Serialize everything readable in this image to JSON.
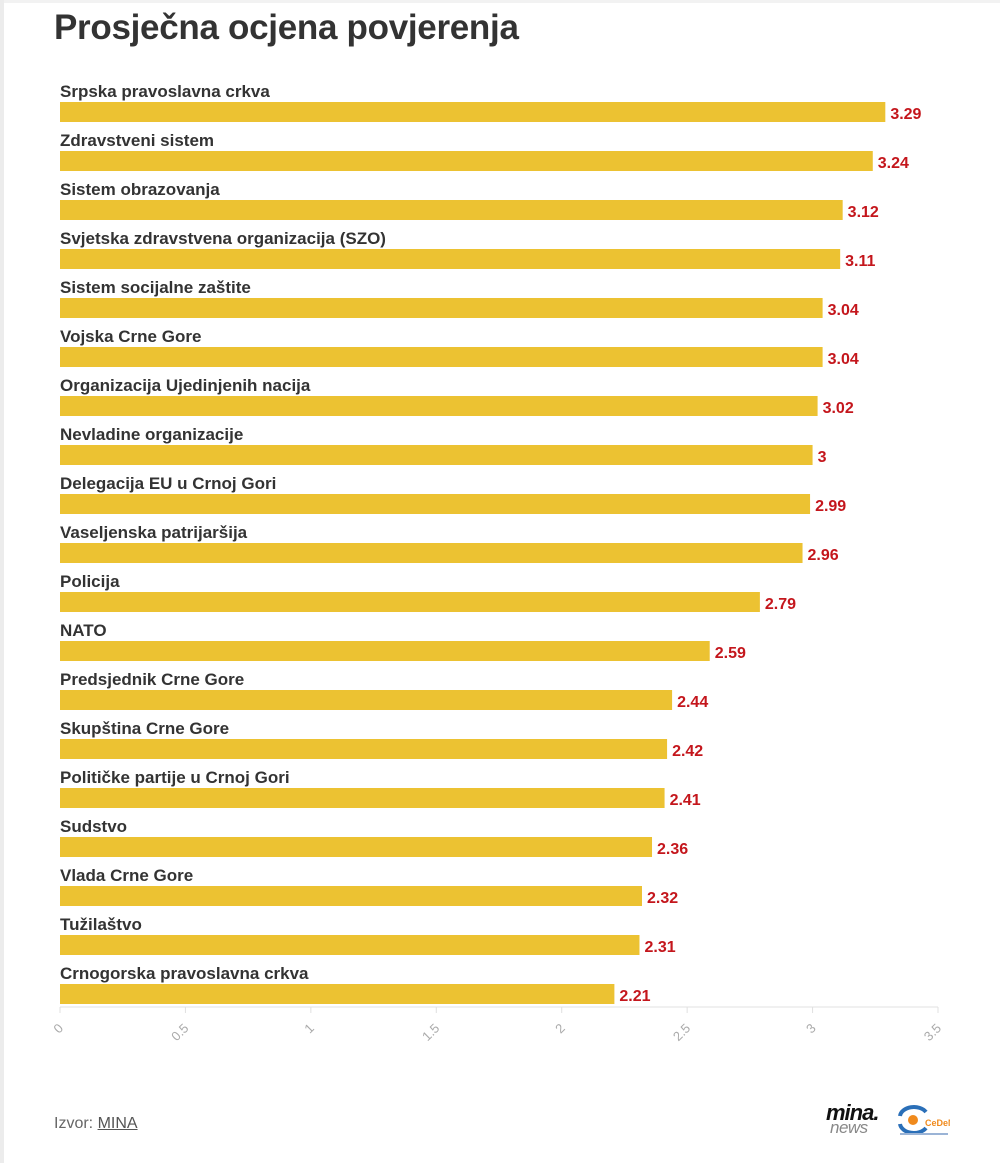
{
  "page": {
    "title": "Prosječna ocjena povjerenja",
    "source_prefix": "Izvor: ",
    "source_link": "MINA",
    "logos": {
      "mina_top": "mina.",
      "mina_bottom": "news",
      "cedem_text": "CeDeM"
    }
  },
  "colors": {
    "bar": "#ecc232",
    "value_label": "#c4161c",
    "category_label": "#333333",
    "axis": "#e0e0e0",
    "tick_label": "#aaaaaa"
  },
  "chart_data": {
    "type": "bar",
    "orientation": "horizontal",
    "title": "Prosječna ocjena povjerenja",
    "xlabel": "",
    "ylabel": "",
    "xlim": [
      0,
      3.5
    ],
    "x_ticks": [
      0,
      0.5,
      1,
      1.5,
      2,
      2.5,
      3,
      3.5
    ],
    "x_tick_labels": [
      "0",
      "0.5",
      "1",
      "1.5",
      "2",
      "2.5",
      "3",
      "3.5"
    ],
    "grid": false,
    "legend": "none",
    "categories": [
      "Srpska pravoslavna crkva",
      "Zdravstveni sistem",
      "Sistem obrazovanja",
      "Svjetska zdravstvena organizacija (SZO)",
      "Sistem socijalne zaštite",
      "Vojska Crne Gore",
      "Organizacija Ujedinjenih nacija",
      "Nevladine organizacije",
      "Delegacija EU u Crnoj Gori",
      "Vaseljenska patrijaršija",
      "Policija",
      "NATO",
      "Predsjednik Crne Gore",
      "Skupština Crne Gore",
      "Političke partije u Crnoj Gori",
      "Sudstvo",
      "Vlada Crne Gore",
      "Tužilaštvo",
      "Crnogorska pravoslavna crkva"
    ],
    "values": [
      3.29,
      3.24,
      3.12,
      3.11,
      3.04,
      3.04,
      3.02,
      3,
      2.99,
      2.96,
      2.79,
      2.59,
      2.44,
      2.42,
      2.41,
      2.36,
      2.32,
      2.31,
      2.21
    ],
    "value_labels": [
      "3.29",
      "3.24",
      "3.12",
      "3.11",
      "3.04",
      "3.04",
      "3.02",
      "3",
      "2.99",
      "2.96",
      "2.79",
      "2.59",
      "2.44",
      "2.42",
      "2.41",
      "2.36",
      "2.32",
      "2.31",
      "2.21"
    ]
  }
}
